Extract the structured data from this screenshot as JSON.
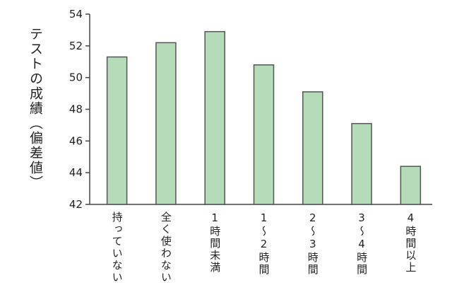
{
  "chart_data": {
    "type": "bar",
    "y_label": "テストの成績（偏差値）",
    "categories": [
      "持っていない",
      "全く使わない",
      "1時間未満",
      "1〜2時間",
      "2〜3時間",
      "3〜4時間",
      "4時間以上"
    ],
    "values": [
      51.3,
      52.2,
      52.9,
      50.8,
      49.1,
      47.1,
      44.4
    ],
    "color": "#b5dcb9",
    "ylim": [
      42,
      54
    ],
    "yticks": [
      42,
      44,
      46,
      48,
      50,
      52,
      54
    ]
  }
}
